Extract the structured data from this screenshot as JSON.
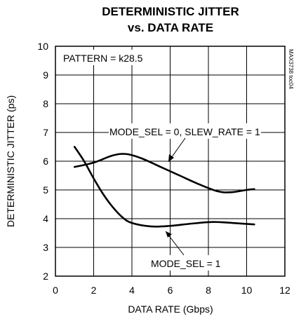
{
  "chart_data": {
    "type": "line",
    "title": "DETERMINISTIC JITTER",
    "subtitle": "vs. DATA RATE",
    "xlabel": "DATA RATE (Gbps)",
    "ylabel": "DETERMINISTIC JITTER (ps)",
    "xlim": [
      0,
      12
    ],
    "ylim": [
      2,
      10
    ],
    "xticks": [
      0,
      2,
      4,
      6,
      8,
      10,
      12
    ],
    "yticks": [
      2,
      3,
      4,
      5,
      6,
      7,
      8,
      9,
      10
    ],
    "grid": true,
    "series": [
      {
        "name": "MODE_SEL = 0, SLEW_RATE = 1",
        "x": [
          1.0,
          2.0,
          3.0,
          3.7,
          4.5,
          5.5,
          6.5,
          7.5,
          8.5,
          9.2,
          10.0,
          10.4
        ],
        "y": [
          5.8,
          5.95,
          6.2,
          6.25,
          6.1,
          5.8,
          5.5,
          5.2,
          4.95,
          4.92,
          5.0,
          5.03
        ]
      },
      {
        "name": "MODE_SEL = 1",
        "x": [
          1.0,
          1.5,
          2.0,
          2.5,
          3.0,
          3.5,
          4.0,
          5.0,
          6.0,
          7.0,
          8.0,
          8.6,
          9.5,
          10.4
        ],
        "y": [
          6.5,
          6.0,
          5.4,
          4.85,
          4.4,
          4.05,
          3.85,
          3.73,
          3.75,
          3.82,
          3.88,
          3.88,
          3.84,
          3.8
        ]
      }
    ],
    "annotations": [
      {
        "text": "PATTERN = k28.5"
      },
      {
        "text": "MODE_SEL = 0, SLEW_RATE = 1"
      },
      {
        "text": "MODE_SEL = 1"
      }
    ],
    "watermark": "MAX3738 toc04"
  }
}
